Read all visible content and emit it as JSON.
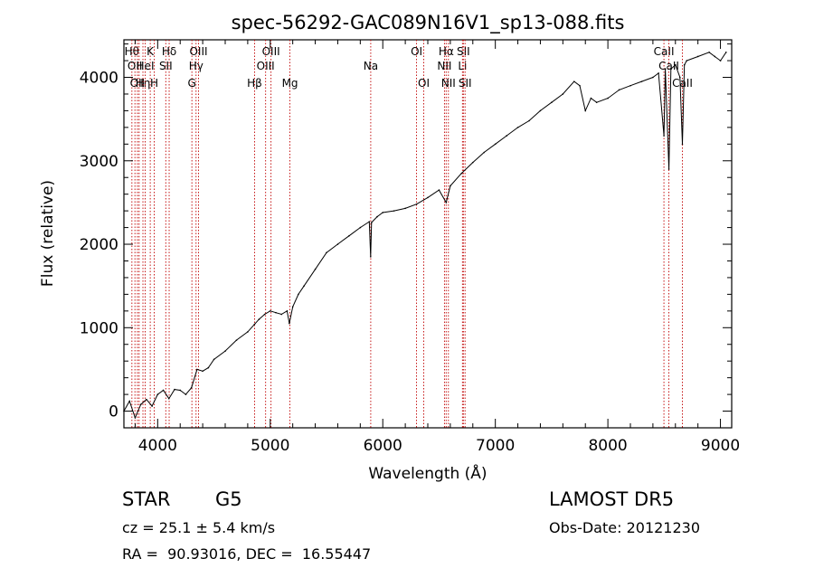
{
  "chart_data": {
    "type": "line",
    "title": "spec-56292-GAC089N16V1_sp13-088.fits",
    "xlabel": "Wavelength (Å)",
    "ylabel": "Flux (relative)",
    "xlim": [
      3700,
      9100
    ],
    "ylim": [
      -200,
      4450
    ],
    "xticks": [
      4000,
      5000,
      6000,
      7000,
      8000,
      9000
    ],
    "yticks": [
      0,
      1000,
      2000,
      3000,
      4000
    ],
    "line_color": "#000000",
    "marker_color": "#c00000",
    "grid": false,
    "series": [
      {
        "x": [
          3700,
          3750,
          3800,
          3850,
          3900,
          3950,
          4000,
          4050,
          4100,
          4150,
          4200,
          4250,
          4300,
          4350,
          4400,
          4450,
          4500,
          4600,
          4700,
          4800,
          4860,
          4900,
          4950,
          5000,
          5050,
          5100,
          5150,
          5170,
          5200,
          5250,
          5300,
          5400,
          5500,
          5600,
          5700,
          5800,
          5880,
          5892,
          5900,
          5950,
          6000,
          6100,
          6200,
          6300,
          6400,
          6500,
          6563,
          6600,
          6700,
          6800,
          6900,
          7000,
          7100,
          7200,
          7300,
          7400,
          7500,
          7600,
          7700,
          7750,
          7800,
          7850,
          7900,
          8000,
          8100,
          8200,
          8300,
          8400,
          8450,
          8498,
          8510,
          8542,
          8560,
          8600,
          8640,
          8662,
          8680,
          8700,
          8800,
          8900,
          8950,
          9000,
          9050
        ],
        "y": [
          0,
          120,
          -80,
          80,
          140,
          60,
          200,
          250,
          150,
          260,
          250,
          200,
          280,
          500,
          480,
          520,
          620,
          720,
          850,
          950,
          1040,
          1100,
          1160,
          1200,
          1180,
          1160,
          1200,
          1050,
          1250,
          1400,
          1500,
          1700,
          1900,
          2000,
          2100,
          2200,
          2270,
          1850,
          2260,
          2330,
          2380,
          2400,
          2430,
          2480,
          2560,
          2650,
          2500,
          2700,
          2850,
          2980,
          3100,
          3200,
          3300,
          3400,
          3480,
          3600,
          3700,
          3800,
          3950,
          3900,
          3600,
          3750,
          3700,
          3750,
          3850,
          3900,
          3950,
          4000,
          4050,
          3300,
          4100,
          2900,
          4100,
          4150,
          4000,
          3200,
          4150,
          4200,
          4250,
          4300,
          4250,
          4200,
          4300
        ]
      }
    ],
    "line_markers": [
      {
        "x": 3771,
        "label": "Hθ",
        "row": 1
      },
      {
        "x": 3798,
        "label": "OII",
        "row": 2
      },
      {
        "x": 3820,
        "label": "OII",
        "row": 3
      },
      {
        "x": 3835,
        "label": "",
        "row": 0
      },
      {
        "x": 3869,
        "label": "Hη",
        "row": 3
      },
      {
        "x": 3889,
        "label": "HeI",
        "row": 2
      },
      {
        "x": 3934,
        "label": "K",
        "row": 1
      },
      {
        "x": 3969,
        "label": "H",
        "row": 3
      },
      {
        "x": 4072,
        "label": "SII",
        "row": 2
      },
      {
        "x": 4102,
        "label": "Hδ",
        "row": 1
      },
      {
        "x": 4304,
        "label": "G",
        "row": 3
      },
      {
        "x": 4341,
        "label": "Hγ",
        "row": 2
      },
      {
        "x": 4363,
        "label": "OIII",
        "row": 1
      },
      {
        "x": 4861,
        "label": "Hβ",
        "row": 3
      },
      {
        "x": 4959,
        "label": "OIII",
        "row": 2
      },
      {
        "x": 5007,
        "label": "OIII",
        "row": 1
      },
      {
        "x": 5175,
        "label": "Mg",
        "row": 3
      },
      {
        "x": 5893,
        "label": "Na",
        "row": 2
      },
      {
        "x": 6300,
        "label": "OI",
        "row": 1
      },
      {
        "x": 6364,
        "label": "OI",
        "row": 3
      },
      {
        "x": 6548,
        "label": "NII",
        "row": 2
      },
      {
        "x": 6563,
        "label": "Hα",
        "row": 1
      },
      {
        "x": 6583,
        "label": "NII",
        "row": 3
      },
      {
        "x": 6708,
        "label": "Li",
        "row": 2
      },
      {
        "x": 6716,
        "label": "SII",
        "row": 1
      },
      {
        "x": 6731,
        "label": "SII",
        "row": 3
      },
      {
        "x": 8498,
        "label": "CaII",
        "row": 1
      },
      {
        "x": 8542,
        "label": "CaII",
        "row": 2
      },
      {
        "x": 8662,
        "label": "CaII",
        "row": 3
      }
    ]
  },
  "info": {
    "class": "STAR",
    "subclass": "G5",
    "survey": "LAMOST DR5",
    "redshift": "cz = 25.1 ± 5.4 km/s",
    "obs_date": "Obs-Date: 20121230",
    "coords": "RA =  90.93016, DEC =  16.55447"
  }
}
